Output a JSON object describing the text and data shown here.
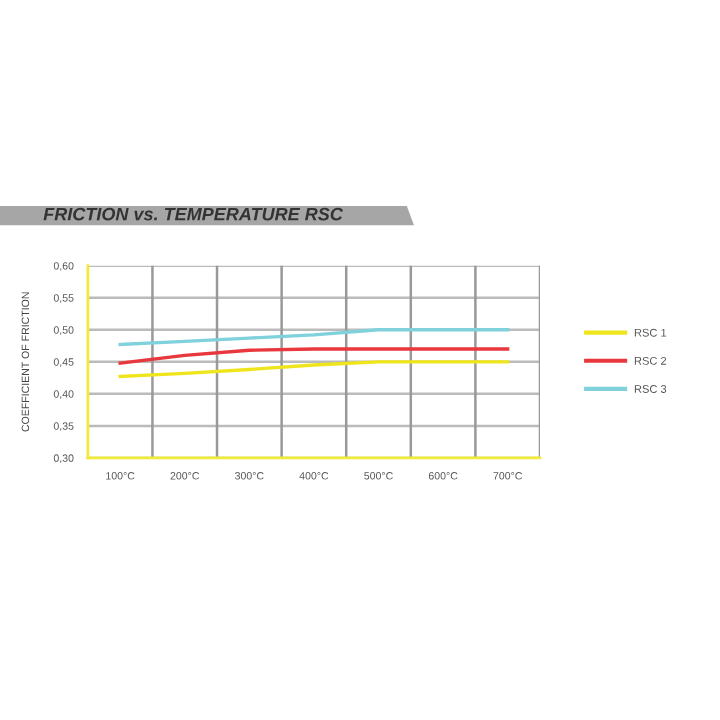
{
  "chart_data": {
    "type": "line",
    "title": "FRICTION vs. TEMPERATURE RSC",
    "ylabel": "COEFFICIENT OF FRICTION",
    "categories": [
      "100°C",
      "200°C",
      "300°C",
      "400°C",
      "500°C",
      "600°C",
      "700°C"
    ],
    "series": [
      {
        "name": "RSC 1",
        "color": "#efe51c",
        "values": [
          0.427,
          0.432,
          0.438,
          0.445,
          0.45,
          0.45,
          0.45
        ]
      },
      {
        "name": "RSC 2",
        "color": "#e8383d",
        "values": [
          0.448,
          0.46,
          0.468,
          0.47,
          0.47,
          0.47,
          0.47
        ]
      },
      {
        "name": "RSC 3",
        "color": "#7fd1dc",
        "values": [
          0.477,
          0.482,
          0.487,
          0.492,
          0.5,
          0.5,
          0.5
        ]
      }
    ],
    "ylim": [
      0.3,
      0.6
    ],
    "yticks": [
      {
        "value": 0.3,
        "label": "0,30"
      },
      {
        "value": 0.35,
        "label": "0,35"
      },
      {
        "value": 0.4,
        "label": "0,40"
      },
      {
        "value": 0.45,
        "label": "0,45"
      },
      {
        "value": 0.5,
        "label": "0,50"
      },
      {
        "value": 0.55,
        "label": "0,55"
      },
      {
        "value": 0.6,
        "label": "0,60"
      }
    ],
    "grid": true,
    "legend": "right",
    "marker": "none",
    "line_style": "solid"
  }
}
